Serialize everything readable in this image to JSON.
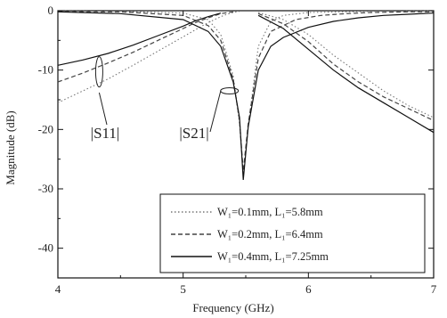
{
  "chart_data": {
    "type": "line",
    "xlabel": "Frequency (GHz)",
    "ylabel": "Magnitude (dB)",
    "xlim": [
      4,
      7
    ],
    "ylim": [
      -45,
      0
    ],
    "xticks": [
      "4",
      "5",
      "6",
      "7"
    ],
    "yticks": [
      "0",
      "-10",
      "-20",
      "-30",
      "-40"
    ],
    "grid": false,
    "legend_position": "bottom-right",
    "annotations": [
      "|S11|",
      "|S21|"
    ],
    "series": [
      {
        "name": "W₁=0.1mm, L₁=5.8mm",
        "style": "dotted",
        "color": "#777777",
        "s11": {
          "x": [
            4.0,
            4.2,
            4.4,
            4.6,
            4.8,
            5.0,
            5.1,
            5.2,
            5.3,
            5.35,
            5.4,
            5.45
          ],
          "y": [
            -15.5,
            -13.5,
            -11.5,
            -9.2,
            -6.8,
            -4.4,
            -3.2,
            -2.0,
            -1.0,
            -0.6,
            -0.3,
            -0.1
          ]
        },
        "s21": {
          "x": [
            4.0,
            4.5,
            5.0,
            5.2,
            5.3,
            5.4,
            5.45,
            5.48,
            5.52,
            5.6,
            5.7,
            5.8,
            6.0,
            6.5,
            7.0
          ],
          "y": [
            -0.05,
            -0.1,
            -0.4,
            -1.5,
            -4.0,
            -11.0,
            -19.0,
            -27.5,
            -19.5,
            -6.0,
            -1.8,
            -0.8,
            -0.3,
            -0.1,
            -0.05
          ]
        }
      },
      {
        "name": "W₁=0.2mm, L₁=6.4mm",
        "style": "dashed",
        "color": "#444444",
        "s11": {
          "x": [
            4.0,
            4.2,
            4.4,
            4.6,
            4.8,
            5.0,
            5.1,
            5.2,
            5.3,
            5.4
          ],
          "y": [
            -12.0,
            -10.5,
            -8.8,
            -7.0,
            -5.0,
            -3.0,
            -2.0,
            -1.2,
            -0.5,
            -0.2
          ]
        },
        "s21": {
          "x": [
            4.0,
            4.5,
            5.0,
            5.2,
            5.3,
            5.4,
            5.45,
            5.48,
            5.52,
            5.6,
            5.7,
            5.9,
            6.1,
            6.3,
            6.5,
            6.8,
            7.0
          ],
          "y": [
            -0.1,
            -0.2,
            -0.8,
            -2.5,
            -5.0,
            -11.5,
            -18.5,
            -27.0,
            -19.0,
            -8.0,
            -3.5,
            -1.5,
            -0.8,
            -0.5,
            -0.3,
            -0.2,
            -0.2
          ]
        }
      },
      {
        "name": "W₁=0.4mm, L₁=7.25mm",
        "style": "solid",
        "color": "#111111",
        "s11": {
          "x": [
            4.0,
            4.2,
            4.4,
            4.6,
            4.8,
            5.0,
            5.1,
            5.2,
            5.3
          ],
          "y": [
            -9.2,
            -8.3,
            -7.2,
            -5.8,
            -4.2,
            -2.6,
            -1.7,
            -1.0,
            -0.4
          ]
        },
        "s21": {
          "x": [
            4.0,
            4.5,
            5.0,
            5.2,
            5.3,
            5.4,
            5.45,
            5.48,
            5.52,
            5.6,
            5.7,
            5.8,
            6.0,
            6.2,
            6.4,
            6.6,
            6.8,
            7.0
          ],
          "y": [
            -0.2,
            -0.5,
            -1.5,
            -3.5,
            -6.0,
            -12.0,
            -18.0,
            -28.5,
            -19.5,
            -10.0,
            -6.0,
            -4.5,
            -2.8,
            -1.8,
            -1.2,
            -0.8,
            -0.6,
            -0.4
          ]
        }
      }
    ],
    "mirror_s11": {
      "x": [
        5.6,
        5.8,
        6.0,
        6.2,
        6.4,
        6.6,
        6.8,
        7.0
      ],
      "y_thin": [
        -0.3,
        -1.5,
        -4.0,
        -7.5,
        -10.5,
        -13.5,
        -16.0,
        -18.0
      ],
      "y_mid": [
        -0.5,
        -2.2,
        -5.2,
        -9.0,
        -12.0,
        -14.5,
        -16.5,
        -18.5
      ],
      "y_thick": [
        -0.8,
        -3.0,
        -6.5,
        -10.0,
        -13.0,
        -15.5,
        -18.0,
        -20.5
      ]
    }
  }
}
